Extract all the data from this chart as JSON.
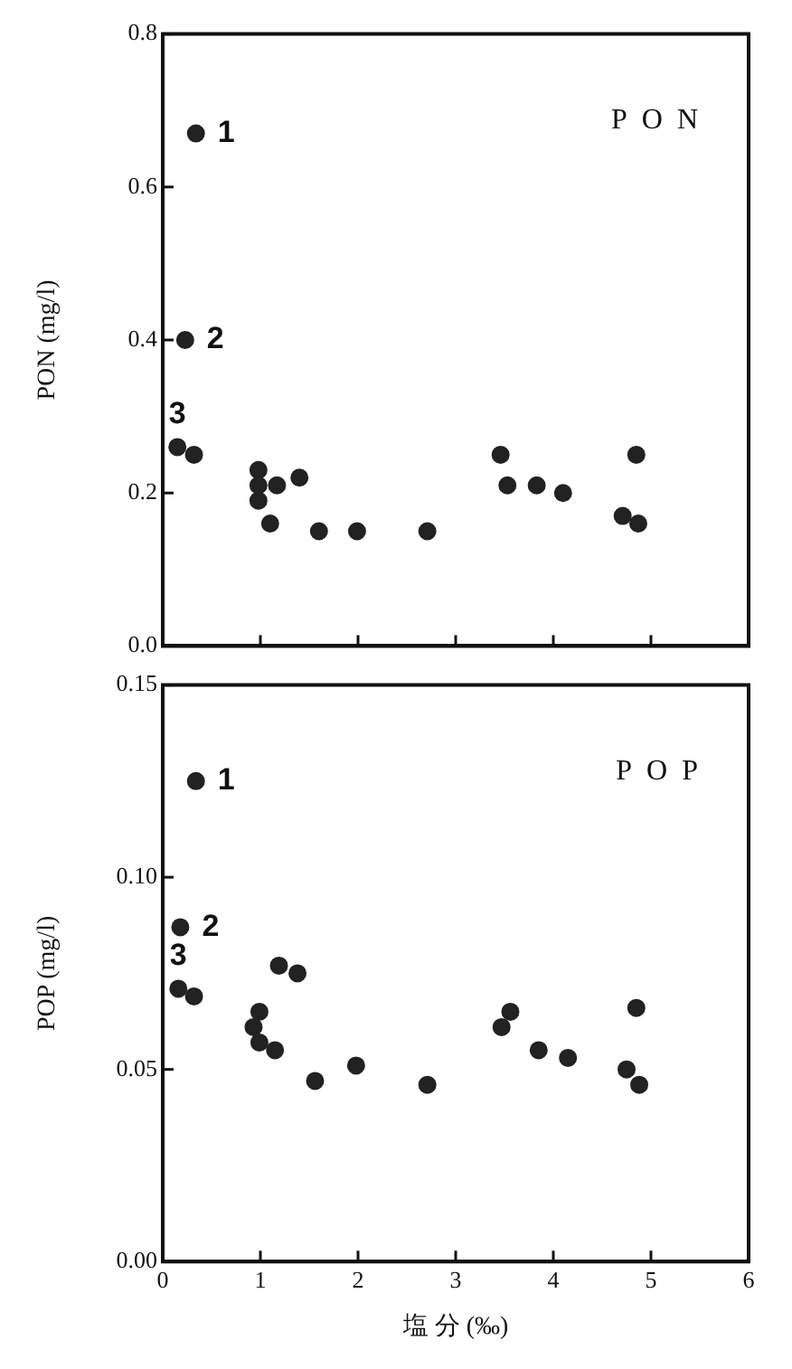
{
  "chart_data": [
    {
      "type": "scatter",
      "ylabel": "PON (mg/l)",
      "x": [
        0.34,
        0.23,
        0.15,
        0.32,
        0.98,
        0.98,
        0.98,
        1.1,
        1.17,
        1.4,
        1.6,
        1.99,
        2.71,
        3.46,
        3.53,
        3.83,
        4.1,
        4.71,
        4.85,
        4.87
      ],
      "values": [
        0.67,
        0.4,
        0.26,
        0.25,
        0.23,
        0.21,
        0.19,
        0.16,
        0.21,
        0.22,
        0.15,
        0.15,
        0.15,
        0.25,
        0.21,
        0.21,
        0.2,
        0.17,
        0.25,
        0.16
      ],
      "color": "#222222",
      "marker": "circle",
      "xlim": [
        0,
        6
      ],
      "xticks": [
        {
          "value": 1,
          "label": null
        },
        {
          "value": 2,
          "label": null
        },
        {
          "value": 3,
          "label": null
        },
        {
          "value": 4,
          "label": null
        },
        {
          "value": 5,
          "label": null
        }
      ],
      "ylim": [
        0,
        0.8
      ],
      "yticks": [
        {
          "value": 0,
          "label": "0.0"
        },
        {
          "value": 0.2,
          "label": "0.2"
        },
        {
          "value": 0.4,
          "label": "0.4"
        },
        {
          "value": 0.6,
          "label": "0.6"
        },
        {
          "value": 0.8,
          "label": "0.8"
        }
      ],
      "tick_labels": "y",
      "grid": false,
      "legend": false,
      "annotations": [
        "PON",
        {
          "text": "1",
          "x": 0.34,
          "y": 0.67
        },
        {
          "text": "2",
          "x": 0.23,
          "y": 0.4
        },
        {
          "text": "3",
          "x": 0.15,
          "y": 0.26
        }
      ]
    },
    {
      "type": "scatter",
      "ylabel": "POP (mg/l)",
      "xlabel": "塩 分 (‰)",
      "x": [
        0.34,
        0.18,
        0.16,
        0.32,
        0.93,
        0.99,
        0.99,
        1.15,
        1.19,
        1.38,
        1.56,
        1.98,
        2.71,
        3.47,
        3.56,
        3.85,
        4.15,
        4.75,
        4.85,
        4.88
      ],
      "values": [
        0.125,
        0.087,
        0.071,
        0.069,
        0.061,
        0.065,
        0.057,
        0.055,
        0.077,
        0.075,
        0.047,
        0.051,
        0.046,
        0.061,
        0.065,
        0.055,
        0.053,
        0.05,
        0.066,
        0.046
      ],
      "color": "#222222",
      "marker": "circle",
      "xlim": [
        0,
        6
      ],
      "xticks": [
        0,
        1,
        2,
        3,
        4,
        5,
        6
      ],
      "ylim": [
        0,
        0.15
      ],
      "yticks": [
        {
          "value": 0,
          "label": "0.00"
        },
        {
          "value": 0.05,
          "label": "0.05"
        },
        {
          "value": 0.1,
          "label": "0.10"
        },
        {
          "value": 0.15,
          "label": "0.15"
        }
      ],
      "grid": false,
      "legend": false,
      "annotations": [
        "POP",
        {
          "text": "1",
          "x": 0.34,
          "y": 0.125
        },
        {
          "text": "2",
          "x": 0.18,
          "y": 0.087
        },
        {
          "text": "3",
          "x": 0.16,
          "y": 0.071
        }
      ]
    }
  ]
}
